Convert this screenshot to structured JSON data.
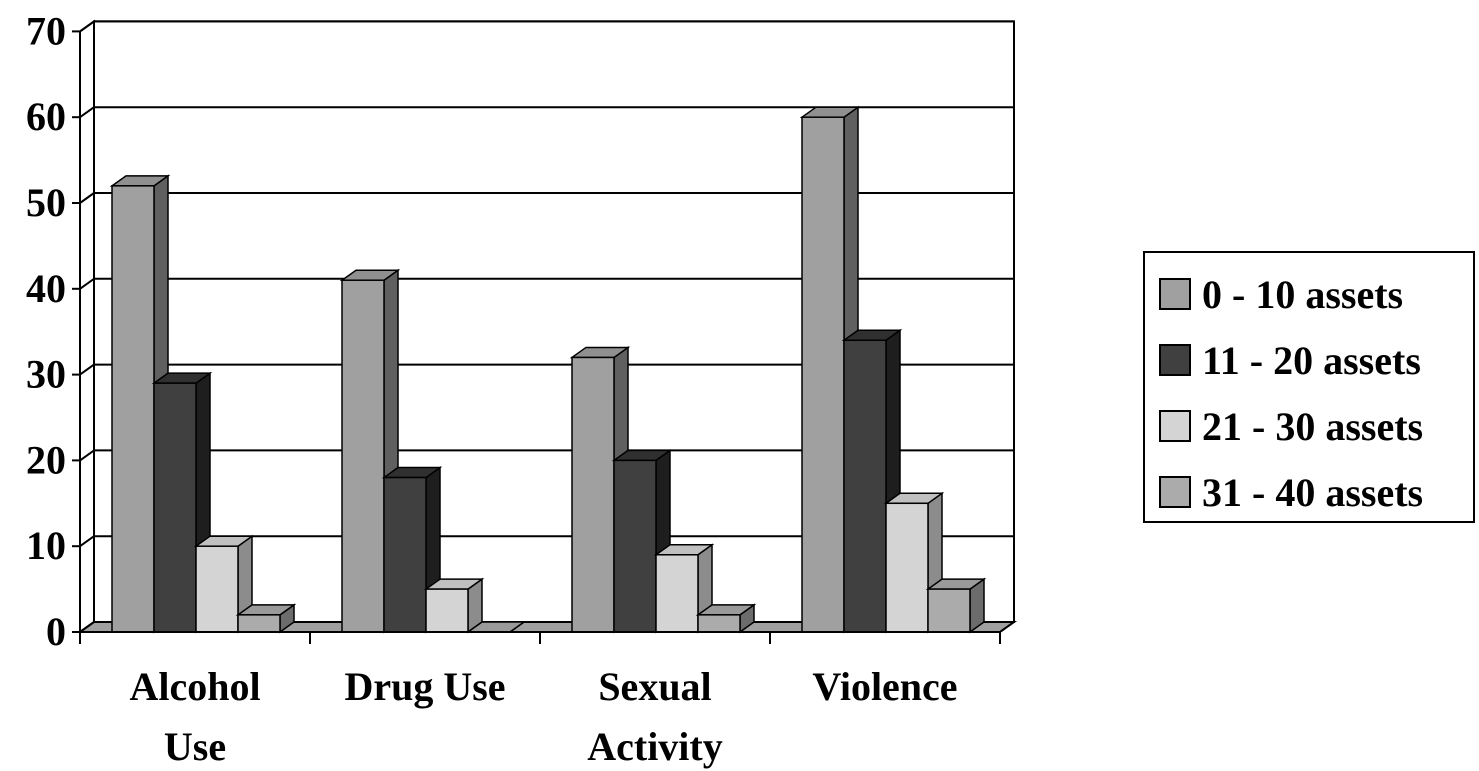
{
  "chart_data": {
    "type": "bar",
    "categories": [
      [
        "Alcohol",
        "Use"
      ],
      [
        "Drug Use"
      ],
      [
        "Sexual",
        "Activity"
      ],
      [
        "Violence"
      ]
    ],
    "series": [
      {
        "name": "0 - 10 assets",
        "values": [
          52,
          41,
          32,
          60
        ]
      },
      {
        "name": "11 - 20 assets",
        "values": [
          29,
          18,
          20,
          34
        ]
      },
      {
        "name": "21 - 30 assets",
        "values": [
          10,
          5,
          9,
          15
        ]
      },
      {
        "name": "31 - 40 assets",
        "values": [
          2,
          0,
          2,
          5
        ]
      }
    ],
    "yticks": [
      "0",
      "10",
      "20",
      "30",
      "40",
      "50",
      "60",
      "70"
    ],
    "ylim": [
      0,
      70
    ],
    "grid": true,
    "legend_position": "right",
    "style": "3d-clustered-column",
    "colors": {
      "series_front": [
        "#a0a0a0",
        "#404040",
        "#d4d4d4",
        "#ababab"
      ],
      "series_side": [
        "#606060",
        "#1e1e1e",
        "#8c8c8c",
        "#6c6c6c"
      ],
      "series_top": [
        "#909090",
        "#303030",
        "#c0c0c0",
        "#9a9a9a"
      ],
      "wall": "#ffffff",
      "floor": "#a0a0a0",
      "line": "#000000"
    }
  }
}
